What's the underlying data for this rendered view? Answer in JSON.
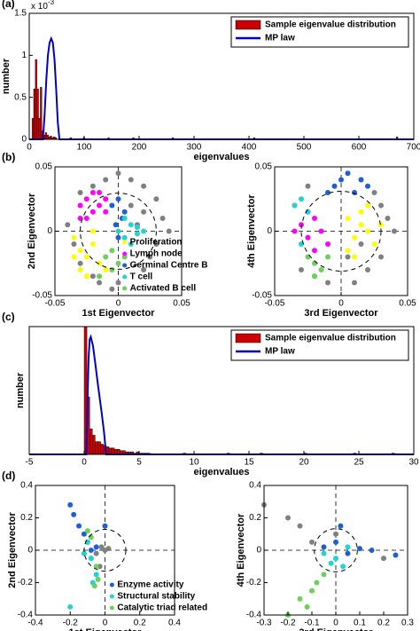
{
  "chart_data": [
    {
      "panel": "(a)",
      "type": "histogram",
      "xlabel": "eigenvalues",
      "ylabel": "number",
      "multiplier": {
        "base": "x 10",
        "exponent": "-3"
      },
      "xlim": [
        0,
        700
      ],
      "ylim": [
        0,
        1.5
      ],
      "xticks": [
        0,
        100,
        200,
        300,
        400,
        500,
        600,
        700
      ],
      "yticks": [
        0,
        0.5,
        1,
        1.5
      ],
      "legend": "upper right",
      "series": [
        {
          "name": "Sample eigenvalue distribution",
          "color": "#cc0000",
          "bins": [
            5,
            8,
            11,
            14,
            17,
            20,
            23,
            26,
            29,
            32,
            35,
            38,
            41,
            44,
            47,
            50,
            74,
            77,
            98,
            101,
            143,
            146,
            188,
            191,
            260,
            263,
            408,
            411,
            668,
            671
          ],
          "counts": [
            0.25,
            0.6,
            0.95,
            0.6,
            0.25,
            0.62,
            0.1,
            0.05,
            0.08,
            0.05,
            0.03,
            0.04,
            0.02,
            0.03,
            0.02,
            0,
            0.02,
            0,
            0.02,
            0,
            0.02,
            0,
            0.02,
            0,
            0.02,
            0,
            0.02,
            0,
            0.03
          ]
        },
        {
          "name": "MP law",
          "color": "#0000cc",
          "x": [
            0,
            25,
            28,
            31,
            34,
            37,
            40,
            43,
            46,
            49,
            52,
            55,
            700
          ],
          "values": [
            0,
            0,
            0.3,
            0.7,
            1.0,
            1.15,
            1.2,
            1.15,
            0.95,
            0.6,
            0.2,
            0,
            0
          ]
        }
      ]
    },
    {
      "panel": "(b)",
      "type": "scatter",
      "xlabel": "1st Eigenvector",
      "ylabel": "2nd Eigenvector",
      "xlim": [
        -0.05,
        0.05
      ],
      "ylim": [
        -0.05,
        0.05
      ],
      "xticks": [
        -0.05,
        0,
        0.05
      ],
      "yticks": [
        -0.05,
        0,
        0.05
      ],
      "legend": "lower right",
      "series": [
        {
          "color": "#808080",
          "x": [
            -0.03,
            -0.02,
            -0.01,
            0,
            0.01,
            0.02,
            0.03,
            0.035,
            0.03,
            0.02,
            0,
            -0.02,
            -0.035,
            -0.03,
            0.01,
            0.025,
            -0.005,
            0.015,
            0.02,
            -0.015,
            0.04,
            -0.04
          ],
          "values": [
            0.03,
            0.035,
            0.04,
            0.045,
            0.04,
            0.035,
            0.025,
            0.01,
            -0.01,
            -0.03,
            -0.04,
            -0.035,
            -0.01,
            -0.025,
            0.02,
            -0.02,
            -0.045,
            0.005,
            0.015,
            -0.04,
            0,
            0.005
          ]
        },
        {
          "name": "Proliferation",
          "color": "#ffff00",
          "x": [
            -0.035,
            -0.03,
            -0.025,
            -0.02,
            -0.03,
            -0.015,
            -0.025,
            -0.02,
            -0.01,
            -0.035
          ],
          "values": [
            -0.005,
            -0.015,
            -0.02,
            -0.01,
            -0.03,
            -0.025,
            -0.035,
            0,
            -0.03,
            -0.02
          ]
        },
        {
          "name": "Lymph node",
          "color": "#ff00ff",
          "x": [
            -0.03,
            -0.025,
            -0.02,
            -0.015,
            -0.01,
            -0.025,
            -0.02,
            -0.015,
            -0.03,
            -0.01
          ],
          "values": [
            0.02,
            0.025,
            0.03,
            0.02,
            0.015,
            0.01,
            0.015,
            0.03,
            0.01,
            0.025
          ]
        },
        {
          "name": "Germinal Centre B",
          "color": "#1f5fd6",
          "x": [
            -0.005,
            0,
            0.003,
            -0.002,
            0.005,
            0
          ],
          "values": [
            0.02,
            0.025,
            0.01,
            0.005,
            0.015,
            -0.005
          ]
        },
        {
          "name": "T cell",
          "color": "#22d3d3",
          "x": [
            0,
            0.005,
            0.01,
            0.015,
            0.02,
            0.01,
            0.005,
            0.015
          ],
          "values": [
            0,
            -0.005,
            0.005,
            -0.002,
            0,
            -0.01,
            0.01,
            0.003
          ]
        },
        {
          "name": "Activated B cell",
          "color": "#6cd15a",
          "x": [
            -0.01,
            -0.005,
            0,
            -0.015,
            -0.005,
            0.005
          ],
          "values": [
            -0.02,
            -0.03,
            -0.025,
            -0.035,
            -0.015,
            -0.02
          ]
        }
      ]
    },
    {
      "type": "scatter",
      "xlabel": "3rd Eigenvector",
      "ylabel": "4th Eigenvector",
      "xlim": [
        -0.05,
        0.05
      ],
      "ylim": [
        -0.05,
        0.05
      ],
      "xticks": [
        -0.05,
        0,
        0.05
      ],
      "yticks": [
        -0.05,
        0,
        0.05
      ],
      "series": [
        {
          "color": "#808080",
          "x": [
            -0.03,
            -0.02,
            0.02,
            0.03,
            0.035,
            0.025,
            0.01,
            -0.01,
            -0.035,
            0.04,
            0.015,
            -0.025,
            0.005,
            0.03
          ],
          "values": [
            -0.03,
            -0.035,
            -0.03,
            -0.02,
            0.01,
            0.03,
            -0.04,
            -0.04,
            0.02,
            0,
            -0.01,
            0.035,
            -0.02,
            0.02
          ]
        },
        {
          "color": "#ffff00",
          "x": [
            0.005,
            0.01,
            0.015,
            0.02,
            0.025,
            0.01,
            0.02,
            0.005,
            0.015,
            0.03
          ],
          "values": [
            0.01,
            -0.005,
            0.015,
            0,
            -0.01,
            -0.02,
            0.02,
            -0.015,
            0.005,
            0.005
          ]
        },
        {
          "color": "#ff00ff",
          "x": [
            -0.03,
            -0.025,
            -0.02,
            -0.015,
            -0.01,
            -0.025,
            -0.02,
            -0.035
          ],
          "values": [
            0.005,
            -0.005,
            0.01,
            0,
            -0.01,
            0.015,
            -0.015,
            0
          ]
        },
        {
          "color": "#1f5fd6",
          "x": [
            -0.005,
            0,
            0.005,
            0.01,
            -0.01,
            0.015,
            0.02
          ],
          "values": [
            0.035,
            0.04,
            0.045,
            0.03,
            0.03,
            0.04,
            0.035
          ]
        },
        {
          "color": "#22d3d3",
          "x": [
            -0.035,
            -0.03,
            -0.025,
            -0.03
          ],
          "values": [
            0.02,
            0.025,
            0.015,
            -0.01
          ]
        },
        {
          "color": "#6cd15a",
          "x": [
            -0.025,
            -0.02,
            -0.015,
            -0.01,
            -0.02
          ],
          "values": [
            -0.02,
            -0.025,
            -0.03,
            -0.02,
            -0.035
          ]
        }
      ]
    },
    {
      "panel": "(c)",
      "type": "histogram",
      "xlabel": "eigenvalues",
      "ylabel": "number",
      "xlim": [
        -5,
        30
      ],
      "ylim": [
        0,
        1
      ],
      "xticks": [
        -5,
        0,
        5,
        10,
        15,
        20,
        25,
        30
      ],
      "legend": "upper right",
      "series": [
        {
          "name": "Sample eigenvalue distribution",
          "color": "#cc0000",
          "bins": [
            0,
            0.25,
            0.5,
            0.75,
            1,
            1.25,
            1.5,
            1.75,
            2,
            2.25,
            2.5,
            2.75,
            3,
            3.25,
            3.5,
            3.75,
            4,
            4.25,
            4.5,
            4.75,
            5,
            5.25,
            5.5,
            5.75,
            6,
            9,
            9.25,
            13,
            13.25,
            16,
            16.25,
            20,
            20.25,
            24.5,
            24.75,
            28,
            28.25
          ],
          "counts": [
            1.0,
            0.45,
            0.2,
            0.15,
            0.1,
            0.1,
            0.08,
            0.07,
            0.06,
            0.05,
            0.05,
            0.04,
            0.04,
            0.03,
            0.03,
            0.02,
            0.02,
            0.02,
            0.01,
            0.02,
            0.01,
            0.01,
            0.01,
            0.01,
            0,
            0.01,
            0,
            0.01,
            0,
            0.01,
            0,
            0.01,
            0,
            0.01,
            0,
            0.01
          ]
        },
        {
          "name": "MP law",
          "color": "#0000cc",
          "x": [
            -5,
            0.2,
            0.3,
            0.4,
            0.5,
            0.6,
            0.8,
            1.0,
            1.2,
            1.4,
            1.6,
            1.8,
            2.0,
            30
          ],
          "values": [
            0,
            0,
            0.4,
            0.75,
            0.9,
            0.92,
            0.85,
            0.72,
            0.58,
            0.45,
            0.32,
            0.18,
            0,
            0
          ]
        }
      ]
    },
    {
      "panel": "(d)",
      "type": "scatter",
      "xlabel": "1st Eigenvector",
      "ylabel": "2nd Eigenvector",
      "xlim": [
        -0.4,
        0.4
      ],
      "ylim": [
        -0.4,
        0.4
      ],
      "xticks": [
        -0.4,
        -0.2,
        0,
        0.2,
        0.4
      ],
      "yticks": [
        -0.4,
        -0.2,
        0,
        0.2,
        0.4
      ],
      "legend": "lower right",
      "series": [
        {
          "color": "#808080",
          "x": [
            -0.02,
            -0.05,
            0,
            -0.03,
            0.02,
            -0.08
          ],
          "values": [
            0.02,
            -0.02,
            0,
            -0.1,
            0.01,
            -0.05
          ]
        },
        {
          "name": "Enzyme activity",
          "color": "#1f5fd6",
          "x": [
            -0.2,
            -0.18,
            -0.15,
            -0.12,
            -0.1,
            -0.05,
            0,
            -0.08
          ],
          "values": [
            0.28,
            0.22,
            0.15,
            0.1,
            0.05,
            0.02,
            0.15,
            0
          ]
        },
        {
          "name": "Structural stability",
          "color": "#22d3d3",
          "x": [
            -0.1,
            -0.08,
            -0.05,
            -0.12,
            -0.07,
            -0.2
          ],
          "values": [
            0.05,
            -0.05,
            -0.15,
            -0.02,
            -0.2,
            -0.35
          ]
        },
        {
          "name": "Catalytic triad related",
          "color": "#6cd15a",
          "x": [
            -0.08,
            -0.05,
            -0.06,
            -0.1,
            -0.04
          ],
          "values": [
            0.08,
            -0.1,
            -0.22,
            0.12,
            -0.18
          ]
        }
      ]
    },
    {
      "type": "scatter",
      "xlabel": "3rd Eigenvector",
      "ylabel": "4th Eigenvector",
      "xlim": [
        -0.3,
        0.3
      ],
      "ylim": [
        -0.4,
        0.4
      ],
      "xticks": [
        -0.3,
        -0.2,
        -0.1,
        0,
        0.1,
        0.2,
        0.3
      ],
      "yticks": [
        -0.4,
        -0.2,
        0,
        0.2,
        0.4
      ],
      "series": [
        {
          "color": "#808080",
          "x": [
            -0.3,
            -0.2,
            -0.15,
            -0.1,
            0.2,
            0
          ],
          "values": [
            0.28,
            0.2,
            0.15,
            0.05,
            -0.05,
            0.1
          ]
        },
        {
          "color": "#1f5fd6",
          "x": [
            -0.05,
            0,
            0.05,
            0.1,
            0.15,
            0.25,
            0.02
          ],
          "values": [
            0.02,
            0.05,
            -0.02,
            0.01,
            0,
            -0.03,
            0.15
          ]
        },
        {
          "color": "#22d3d3",
          "x": [
            -0.05,
            0,
            0.05,
            -0.02,
            0.03
          ],
          "values": [
            -0.02,
            -0.05,
            0.02,
            -0.08,
            -0.1
          ]
        },
        {
          "color": "#6cd15a",
          "x": [
            -0.2,
            -0.15,
            -0.1,
            -0.05,
            -0.12,
            -0.08
          ],
          "values": [
            -0.4,
            -0.3,
            -0.25,
            -0.15,
            -0.35,
            -0.2
          ]
        }
      ]
    }
  ]
}
